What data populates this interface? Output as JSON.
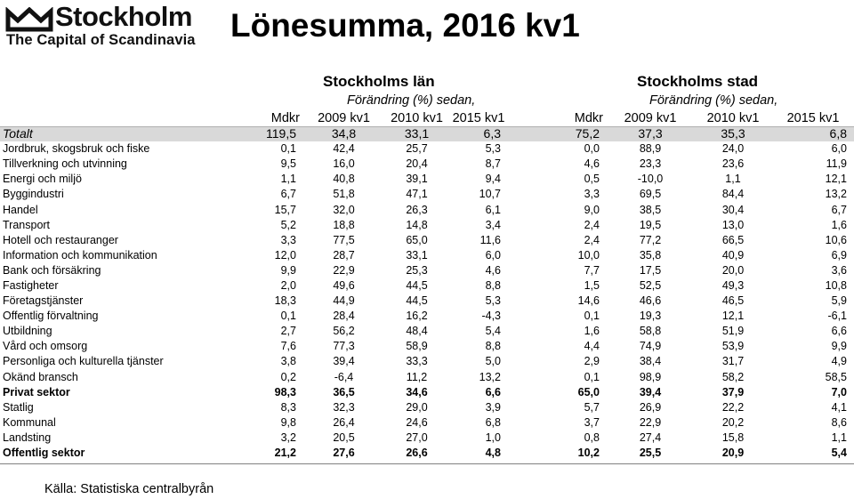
{
  "logo": {
    "word": "Stockholm",
    "tagline": "The Capital of Scandinavia"
  },
  "title": "Lönesumma, 2016 kv1",
  "groups": {
    "lan": {
      "title": "Stockholms län",
      "subtitle": "Förändring (%) sedan,"
    },
    "stad": {
      "title": "Stockholms stad",
      "subtitle": "Förändring (%) sedan,"
    }
  },
  "columns": [
    "Mdkr",
    "2009 kv1",
    "2010 kv1",
    "2015 kv1",
    "Mdkr",
    "2009 kv1",
    "2010 kv1",
    "2015 kv1"
  ],
  "rows": [
    {
      "label": "Totalt",
      "values": [
        "119,5",
        "34,8",
        "33,1",
        "6,3",
        "75,2",
        "37,3",
        "35,3",
        "6,8"
      ]
    },
    {
      "label": "Jordbruk, skogsbruk och fiske",
      "values": [
        "0,1",
        "42,4",
        "25,7",
        "5,3",
        "0,0",
        "88,9",
        "24,0",
        "6,0"
      ]
    },
    {
      "label": "Tillverkning och utvinning",
      "values": [
        "9,5",
        "16,0",
        "20,4",
        "8,7",
        "4,6",
        "23,3",
        "23,6",
        "11,9"
      ]
    },
    {
      "label": "Energi och miljö",
      "values": [
        "1,1",
        "40,8",
        "39,1",
        "9,4",
        "0,5",
        "-10,0",
        "1,1",
        "12,1"
      ]
    },
    {
      "label": "Byggindustri",
      "values": [
        "6,7",
        "51,8",
        "47,1",
        "10,7",
        "3,3",
        "69,5",
        "84,4",
        "13,2"
      ]
    },
    {
      "label": "Handel",
      "values": [
        "15,7",
        "32,0",
        "26,3",
        "6,1",
        "9,0",
        "38,5",
        "30,4",
        "6,7"
      ]
    },
    {
      "label": "Transport",
      "values": [
        "5,2",
        "18,8",
        "14,8",
        "3,4",
        "2,4",
        "19,5",
        "13,0",
        "1,6"
      ]
    },
    {
      "label": "Hotell och restauranger",
      "values": [
        "3,3",
        "77,5",
        "65,0",
        "11,6",
        "2,4",
        "77,2",
        "66,5",
        "10,6"
      ]
    },
    {
      "label": "Information och kommunikation",
      "values": [
        "12,0",
        "28,7",
        "33,1",
        "6,0",
        "10,0",
        "35,8",
        "40,9",
        "6,9"
      ]
    },
    {
      "label": "Bank och försäkring",
      "values": [
        "9,9",
        "22,9",
        "25,3",
        "4,6",
        "7,7",
        "17,5",
        "20,0",
        "3,6"
      ]
    },
    {
      "label": "Fastigheter",
      "values": [
        "2,0",
        "49,6",
        "44,5",
        "8,8",
        "1,5",
        "52,5",
        "49,3",
        "10,8"
      ]
    },
    {
      "label": "Företagstjänster",
      "values": [
        "18,3",
        "44,9",
        "44,5",
        "5,3",
        "14,6",
        "46,6",
        "46,5",
        "5,9"
      ]
    },
    {
      "label": "Offentlig förvaltning",
      "values": [
        "0,1",
        "28,4",
        "16,2",
        "-4,3",
        "0,1",
        "19,3",
        "12,1",
        "-6,1"
      ]
    },
    {
      "label": "Utbildning",
      "values": [
        "2,7",
        "56,2",
        "48,4",
        "5,4",
        "1,6",
        "58,8",
        "51,9",
        "6,6"
      ]
    },
    {
      "label": "Vård och omsorg",
      "values": [
        "7,6",
        "77,3",
        "58,9",
        "8,8",
        "4,4",
        "74,9",
        "53,9",
        "9,9"
      ]
    },
    {
      "label": "Personliga och kulturella tjänster",
      "values": [
        "3,8",
        "39,4",
        "33,3",
        "5,0",
        "2,9",
        "38,4",
        "31,7",
        "4,9"
      ]
    },
    {
      "label": "Okänd bransch",
      "values": [
        "0,2",
        "-6,4",
        "11,2",
        "13,2",
        "0,1",
        "98,9",
        "58,2",
        "58,5"
      ]
    },
    {
      "label": "Privat sektor",
      "values": [
        "98,3",
        "36,5",
        "34,6",
        "6,6",
        "65,0",
        "39,4",
        "37,9",
        "7,0"
      ]
    },
    {
      "label": "Statlig",
      "values": [
        "8,3",
        "32,3",
        "29,0",
        "3,9",
        "5,7",
        "26,9",
        "22,2",
        "4,1"
      ]
    },
    {
      "label": "Kommunal",
      "values": [
        "9,8",
        "26,4",
        "24,6",
        "6,8",
        "3,7",
        "22,9",
        "20,2",
        "8,6"
      ]
    },
    {
      "label": "Landsting",
      "values": [
        "3,2",
        "20,5",
        "27,0",
        "1,0",
        "0,8",
        "27,4",
        "15,8",
        "1,1"
      ]
    },
    {
      "label": "Offentlig sektor",
      "values": [
        "21,2",
        "27,6",
        "26,6",
        "4,8",
        "10,2",
        "25,5",
        "20,9",
        "5,4"
      ]
    }
  ],
  "source": "Källa: Statistiska centralbyrån",
  "colors": {
    "total_row_bg": "#d9d9d9",
    "text": "#000000"
  }
}
